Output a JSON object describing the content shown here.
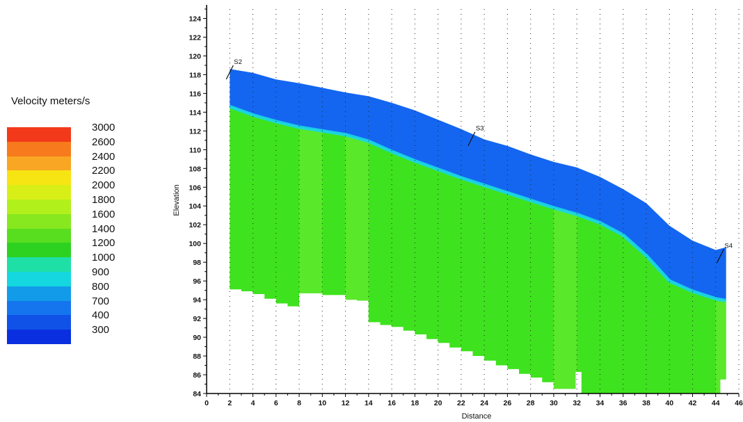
{
  "legend": {
    "title": "Velocity meters/s",
    "entries": [
      {
        "label": "3000",
        "color": "#f23a1a"
      },
      {
        "label": "2600",
        "color": "#f77a1c"
      },
      {
        "label": "2400",
        "color": "#f8a623"
      },
      {
        "label": "2200",
        "color": "#f7e413"
      },
      {
        "label": "2000",
        "color": "#d8ef17"
      },
      {
        "label": "1800",
        "color": "#b2f01c"
      },
      {
        "label": "1600",
        "color": "#88e81f"
      },
      {
        "label": "1400",
        "color": "#58dd1f"
      },
      {
        "label": "1200",
        "color": "#2dd221"
      },
      {
        "label": "1000",
        "color": "#1ee0a6"
      },
      {
        "label": "900",
        "color": "#14d7df"
      },
      {
        "label": "800",
        "color": "#129be8"
      },
      {
        "label": "700",
        "color": "#1475ee"
      },
      {
        "label": "400",
        "color": "#1052e8"
      },
      {
        "label": "300",
        "color": "#0a2fe0"
      }
    ]
  },
  "chart_data": {
    "type": "heatmap",
    "title": "",
    "xlabel": "Distance",
    "ylabel": "Elevation",
    "xlim": [
      0,
      46
    ],
    "ylim": [
      84,
      125
    ],
    "x_ticks": [
      0,
      2,
      4,
      6,
      8,
      10,
      12,
      14,
      16,
      18,
      20,
      22,
      24,
      26,
      28,
      30,
      32,
      34,
      36,
      38,
      40,
      42,
      44,
      46
    ],
    "y_ticks": [
      84,
      86,
      88,
      90,
      92,
      94,
      96,
      98,
      100,
      102,
      104,
      106,
      108,
      110,
      112,
      114,
      116,
      118,
      120,
      122,
      124
    ],
    "grid": "vertical dotted",
    "colors": {
      "low_velocity": "#1466f0",
      "transition": "#19d8e6",
      "high_velocity": "#3fe21e",
      "high_velocity_light": "#5ae82a"
    },
    "surface": {
      "x": [
        2,
        4,
        6,
        8,
        10,
        12,
        14,
        16,
        18,
        20,
        22,
        24,
        26,
        28,
        30,
        32,
        34,
        36,
        38,
        40,
        42,
        44,
        44.9
      ],
      "y": [
        118.6,
        118.2,
        117.5,
        117.1,
        116.6,
        116.1,
        115.7,
        115.0,
        114.2,
        113.2,
        112.2,
        111.1,
        110.4,
        109.5,
        108.7,
        108.1,
        107.1,
        105.8,
        104.3,
        101.9,
        100.3,
        99.3,
        99.6
      ]
    },
    "interface": {
      "x": [
        2,
        4,
        6,
        8,
        10,
        12,
        14,
        16,
        18,
        20,
        22,
        24,
        26,
        28,
        30,
        32,
        34,
        36,
        38,
        40,
        42,
        44,
        44.9
      ],
      "y": [
        114.6,
        113.7,
        113.0,
        112.4,
        112.0,
        111.6,
        110.9,
        109.8,
        108.8,
        107.9,
        107.0,
        106.2,
        105.4,
        104.6,
        103.8,
        103.1,
        102.2,
        100.9,
        98.7,
        96.0,
        94.9,
        94.1,
        93.9
      ]
    },
    "bottom": {
      "x": [
        2,
        3,
        3,
        4,
        4,
        5,
        5,
        6,
        6,
        7,
        7,
        8,
        8,
        9,
        9,
        10,
        10,
        11,
        11,
        12,
        12,
        13,
        13,
        14,
        14,
        15,
        15,
        16,
        16,
        17,
        17,
        18,
        18,
        19,
        19,
        20,
        20,
        21,
        21,
        22,
        22,
        23,
        23,
        24,
        24,
        25,
        25,
        26,
        26,
        27,
        27,
        28,
        28,
        29,
        29,
        30,
        30,
        31.9,
        31.9,
        32.4,
        32.4,
        44.4,
        44.4,
        44.9
      ],
      "y": [
        95.1,
        95.1,
        94.9,
        94.9,
        94.6,
        94.6,
        94.1,
        94.1,
        93.6,
        93.6,
        93.3,
        93.3,
        94.7,
        94.7,
        94.7,
        94.7,
        94.5,
        94.5,
        94.5,
        94.5,
        94.0,
        94.0,
        93.9,
        93.9,
        91.6,
        91.6,
        91.3,
        91.3,
        91.1,
        91.1,
        90.7,
        90.7,
        90.3,
        90.3,
        89.8,
        89.8,
        89.4,
        89.4,
        88.9,
        88.9,
        88.5,
        88.5,
        88.0,
        88.0,
        87.5,
        87.5,
        87.0,
        87.0,
        86.6,
        86.6,
        86.1,
        86.1,
        85.7,
        85.7,
        85.2,
        85.2,
        84.5,
        84.5,
        86.3,
        86.3,
        84.0,
        84.0,
        85.5,
        85.5
      ]
    },
    "light_bands": [
      [
        8,
        10
      ],
      [
        12,
        14
      ],
      [
        30,
        32
      ],
      [
        44,
        44.9
      ]
    ],
    "stations": [
      {
        "label": "S2",
        "x": 2.0,
        "y": 118.7
      },
      {
        "label": "S3",
        "x": 22.9,
        "y": 111.6
      },
      {
        "label": "S4",
        "x": 44.4,
        "y": 99.1
      }
    ]
  }
}
